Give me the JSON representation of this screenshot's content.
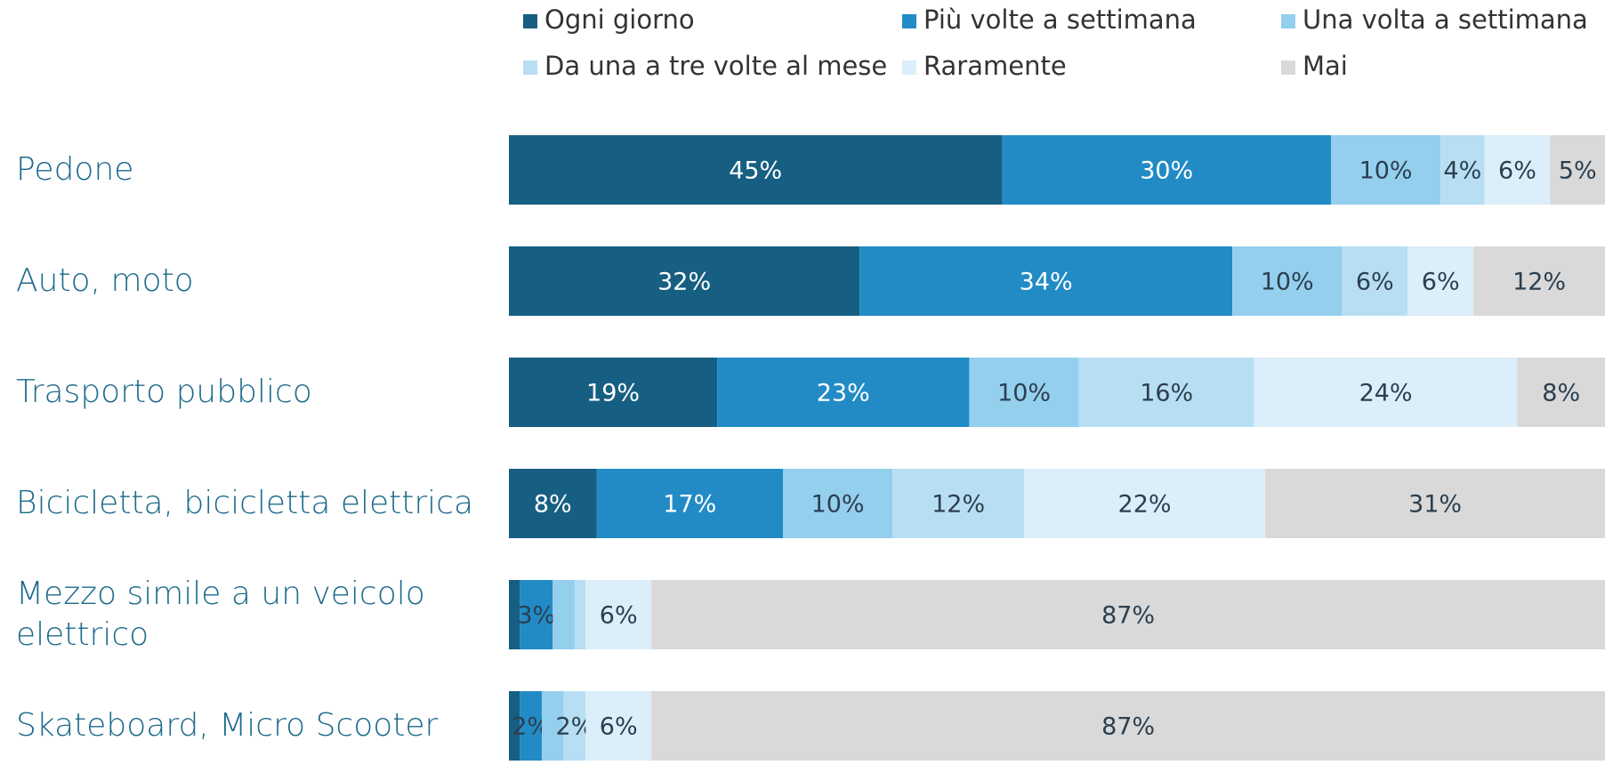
{
  "chart_data": {
    "type": "stacked_bar_horizontal",
    "categories": [
      "Pedone",
      "Auto, moto",
      "Trasporto pubblico",
      "Bicicletta, bicicletta elettrica",
      "Mezzo simile a un veicolo elettrico",
      "Skateboard, Micro Scooter"
    ],
    "xlim": [
      0,
      100
    ],
    "series": [
      {
        "name": "Ogni giorno",
        "color": "#175f82",
        "values": [
          45,
          32,
          19,
          8,
          1,
          1
        ],
        "value_labels": [
          "45%",
          "32%",
          "19%",
          "8%",
          null,
          null
        ]
      },
      {
        "name": "Più volte a settimana",
        "color": "#228bc6",
        "values": [
          30,
          34,
          23,
          17,
          3,
          2
        ],
        "value_labels": [
          "30%",
          "34%",
          "23%",
          "17%",
          "3%",
          "2%"
        ]
      },
      {
        "name": "Una volta a settimana",
        "color": "#95cfee",
        "values": [
          10,
          10,
          10,
          10,
          2,
          2
        ],
        "value_labels": [
          "10%",
          "10%",
          "10%",
          "10%",
          null,
          null
        ]
      },
      {
        "name": "Da una a tre volte al mese",
        "color": "#b8def3",
        "values": [
          4,
          6,
          16,
          12,
          1,
          2
        ],
        "value_labels": [
          "4%",
          "6%",
          "16%",
          "12%",
          null,
          "2%"
        ]
      },
      {
        "name": "Raramente",
        "color": "#dbeef9",
        "values": [
          6,
          6,
          24,
          22,
          6,
          6
        ],
        "value_labels": [
          "6%",
          "6%",
          "24%",
          "22%",
          "6%",
          "6%"
        ]
      },
      {
        "name": "Mai",
        "color": "#d9d9d9",
        "values": [
          5,
          12,
          8,
          31,
          87,
          87
        ],
        "value_labels": [
          "5%",
          "12%",
          "8%",
          "31%",
          "87%",
          "87%"
        ]
      }
    ],
    "legend": "top"
  }
}
